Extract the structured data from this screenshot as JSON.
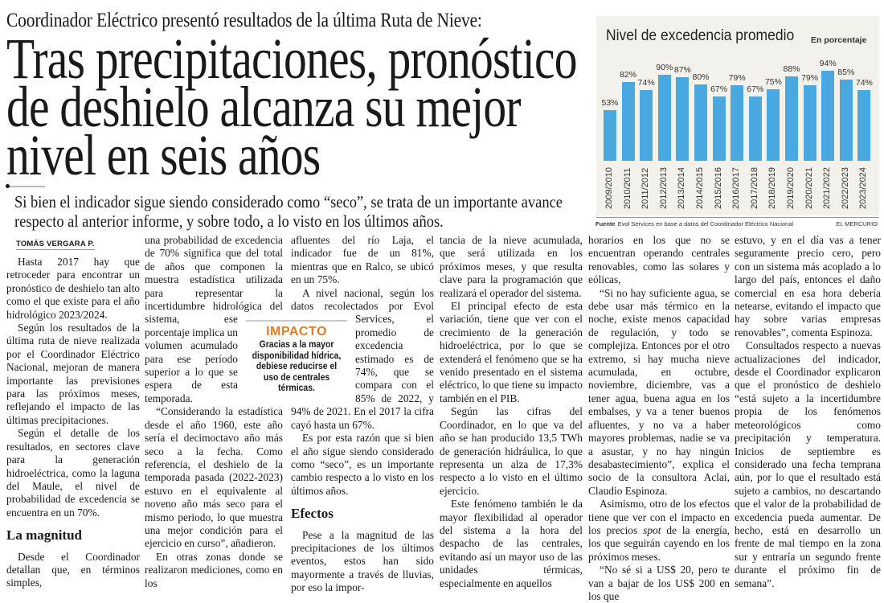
{
  "kicker": "Coordinador Eléctrico presentó resultados de la última Ruta de Nieve:",
  "headline": [
    "Tras precipitaciones, pronóstico",
    "de deshielo alcanza su mejor",
    "nivel en seis años"
  ],
  "lede": "Si bien el indicador sigue siendo considerado como “seco”, se trata de un importante avance respecto al anterior informe, y sobre todo, a lo visto en los últimos años.",
  "byline": "TOMÁS VERGARA P.",
  "col1": {
    "p1": "Hasta 2017 hay que retroceder para encontrar un pronóstico de deshielo tan alto como el que existe para el año hidrológico 2023/2024.",
    "p2": "Según los resultados de la última ruta de nieve realizada por el Coordinador Eléctrico Nacional, mejoran de manera importante las previsiones para las próximos meses, reflejando el impacto de las últimas precipitaciones.",
    "p3": "Según el detalle de los resultados, en sectores clave para la generación hidroeléctrica, como la laguna del Maule, el nivel de probabilidad de excedencia se encuentra en un 70%.",
    "h": "La magnitud",
    "p4": "Desde el Coordinador detallan que, en términos simples,"
  },
  "col2": {
    "p1": "una probabilidad de excedencia de 70% significa que del total de años que componen la muestra estadística utilizada para representar la incertidumbre hidrológica del sistema, ese porcentaje implica un volumen acumulado para ese período superior a lo que se espera de esta temporada.",
    "p2": "“Considerando la estadística desde el año 1960, este año sería el decimoctavo año más seco a la fecha. Como referencia, el deshielo de la temporada pasada (2022-2023) estuvo en el equivalente al noveno año más seco para el mismo periodo, lo que muestra una mejor condición para el ejercicio en curso”, añadieron.",
    "p3": "En otras zonas donde se realizaron mediciones, como en los"
  },
  "col3": {
    "p1": "afluentes del río Laja, el indicador fue de un 81%, mientras que en Ralco, se ubicó en un 75%.",
    "p2": "A nivel nacional, según los datos recolectados por Evol Services, el promedio de excedencia estimado es de 74%, que se compara con el 85% de 2022, y 94% de 2021. En el 2017 la cifra cayó hasta un 67%.",
    "p3": "Es por esta razón que si bien el año sigue siendo considerado como “seco”, es un importante cambio respecto a lo visto en los últimos años.",
    "h": "Efectos",
    "p4": "Pese a la magnitud de las precipitaciones de los últimos eventos, estos han sido mayormente a través de lluvias, por eso la impor-"
  },
  "col4": {
    "p1": "tancia de la nieve acumulada, que será utilizada en los próximos meses, y que resulta clave para la programación que realizará el operador del sistema.",
    "p2": "El principal efecto de esta variación, tiene que ver con el crecimiento de la generación hidroeléctrica, por lo que se extenderá el fenómeno que se ha venido presentado en el sistema eléctrico, lo que tiene su impacto también en el PIB.",
    "p3": "Según las cifras del Coordinador, en lo que va del año se han producido 13,5 TWh de generación hidráulica, lo que representa un alza de 17,3% respecto a lo visto en el último ejercicio.",
    "p4": "Este fenómeno también le da mayor flexibilidad al operador del sistema a la hora del despacho de las centrales, evitando así un mayor uso de las unidades térmicas, especialmente en aquellos"
  },
  "col5": {
    "p1": "horarios en los que no se encuentran operando centrales renovables, como las solares y eólicas,",
    "p2": "“Si no hay suficiente agua, se debe usar más térmico en la noche, existe menos capacidad de regulación, y todo se complejiza. Entonces por el otro extremo, si hay mucha nieve acumulada, en octubre, noviembre, diciembre, vas a tener agua, buena agua en los embalses, y va a tener buenos afluentes, y no va a haber mayores problemas, nadie se va a asustar, y no hay ningún desabastecimiento”, explica el socio de la consultora Aclai, Claudio Espinoza.",
    "p3a": "Asimismo, otro de los efectos tiene que ver con el impacto en los precios ",
    "p3em": "spot",
    "p3b": " de la energía, los que seguirán cayendo en los próximos meses.",
    "p4": "“No sé si a US$ 20, pero te van a bajar de los US$ 200 en los que"
  },
  "col6": {
    "p1": "estuvo, y en el día vas a tener seguramente precio cero, pero con un sistema más acoplado a lo largo del país, entonces el daño comercial en esa hora debería netearse, evitando el impacto que hay sobre varias empresas renovables”, comenta Espinoza.",
    "p2": "Consultados respecto a nuevas actualizaciones del indicador, desde el Coordinador explicaron que el pronóstico de deshielo “está sujeto a la incertidumbre propia de los fenómenos meteorológicos como precipitación y temperatura. Inicios de septiembre es considerado una fecha temprana aún, por lo que el resultado está sujeto a cambios, no descartando que el valor de la probabilidad de excedencia pueda aumentar. De hecho, está en desarrollo un frente de mal tiempo en la zona sur y entraría un segundo frente durante el próximo fin de semana”."
  },
  "impact": {
    "title": "IMPACTO",
    "body": "Gracias a la mayor disponibilidad hídrica, debiese reducirse el uso de centrales térmicas.",
    "accent_color": "#e87a22"
  },
  "chart_data": {
    "type": "bar",
    "title": "Nivel de excedencia promedio",
    "subtitle": "En porcentaje",
    "categories": [
      "2009/2010",
      "2010/2011",
      "2011/2012",
      "2012/2013",
      "2013/2014",
      "2014/2015",
      "2015/2016",
      "2016/2017",
      "2017/2018",
      "2018/2019",
      "2019/2020",
      "2020/2021",
      "2021/2022",
      "2022/2023",
      "2023/2024"
    ],
    "values": [
      53,
      82,
      74,
      90,
      87,
      80,
      67,
      79,
      67,
      75,
      88,
      79,
      94,
      85,
      74
    ],
    "value_labels": [
      "53%",
      "82%",
      "74%",
      "90%",
      "87%",
      "80%",
      "67%",
      "79%",
      "67%",
      "75%",
      "88%",
      "79%",
      "94%",
      "85%",
      "74%"
    ],
    "bar_color": "#4aa8e0",
    "grid": false,
    "source_label": "Fuente",
    "source": "Evol Services en base a datos del Coordinador Eléctrico Nacional",
    "brand": "EL MERCURIO"
  }
}
